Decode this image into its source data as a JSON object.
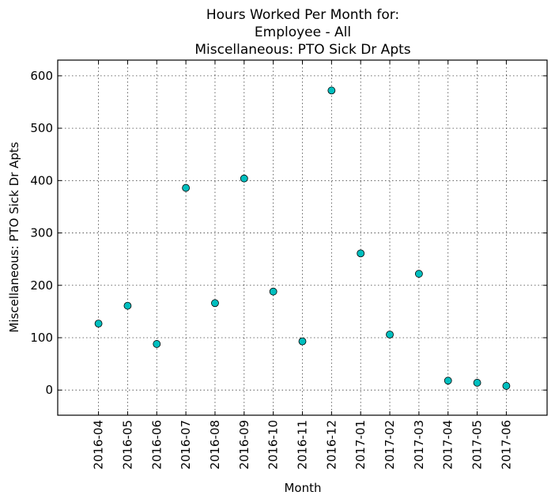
{
  "chart_data": {
    "type": "scatter",
    "title_lines": [
      "Hours Worked Per Month for:",
      "Employee - All",
      "Miscellaneous: PTO Sick Dr Apts"
    ],
    "xlabel": "Month",
    "ylabel": "Miscellaneous: PTO Sick Dr Apts",
    "categories": [
      "2016-04",
      "2016-05",
      "2016-06",
      "2016-07",
      "2016-08",
      "2016-09",
      "2016-10",
      "2016-11",
      "2016-12",
      "2017-01",
      "2017-02",
      "2017-03",
      "2017-04",
      "2017-05",
      "2017-06"
    ],
    "values": [
      127,
      161,
      88,
      386,
      166,
      404,
      188,
      93,
      572,
      261,
      106,
      222,
      18,
      14,
      8
    ],
    "ylim": [
      -48,
      630
    ],
    "yticks": [
      0,
      100,
      200,
      300,
      400,
      500,
      600
    ],
    "xlim": [
      -1.4,
      15.4
    ],
    "grid": true,
    "marker_color": "#00bfbf"
  }
}
